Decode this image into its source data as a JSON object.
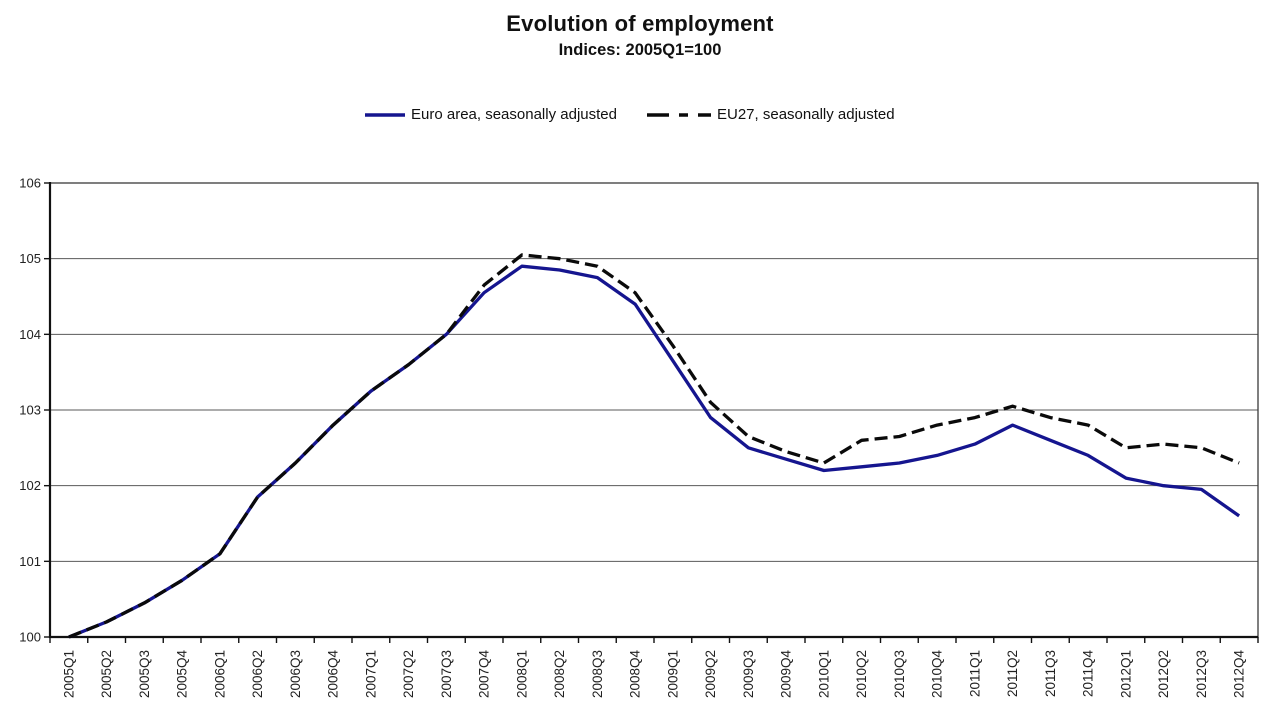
{
  "title": "Evolution of employment",
  "subtitle": "Indices: 2005Q1=100",
  "chart_data": {
    "type": "line",
    "title": "Evolution of employment",
    "subtitle": "Indices: 2005Q1=100",
    "categories": [
      "2005Q1",
      "2005Q2",
      "2005Q3",
      "2005Q4",
      "2006Q1",
      "2006Q2",
      "2006Q3",
      "2006Q4",
      "2007Q1",
      "2007Q2",
      "2007Q3",
      "2007Q4",
      "2008Q1",
      "2008Q2",
      "2008Q3",
      "2008Q4",
      "2009Q1",
      "2009Q2",
      "2009Q3",
      "2009Q4",
      "2010Q1",
      "2010Q2",
      "2010Q3",
      "2010Q4",
      "2011Q1",
      "2011Q2",
      "2011Q3",
      "2011Q4",
      "2012Q1",
      "2012Q2",
      "2012Q3",
      "2012Q4"
    ],
    "series": [
      {
        "name": "Euro area, seasonally adjusted",
        "color": "#15158F",
        "dash": null,
        "values": [
          100.0,
          100.2,
          100.45,
          100.75,
          101.1,
          101.85,
          102.3,
          102.8,
          103.25,
          103.6,
          104.0,
          104.55,
          104.9,
          104.85,
          104.75,
          104.4,
          103.65,
          102.9,
          102.5,
          102.35,
          102.2,
          102.25,
          102.3,
          102.4,
          102.55,
          102.8,
          102.6,
          102.4,
          102.1,
          102.0,
          101.95,
          101.6
        ]
      },
      {
        "name": "EU27, seasonally adjusted",
        "color": "#0a0a0a",
        "dash": [
          13,
          6
        ],
        "values": [
          100.0,
          100.2,
          100.45,
          100.75,
          101.1,
          101.85,
          102.3,
          102.8,
          103.25,
          103.6,
          104.0,
          104.65,
          105.05,
          105.0,
          104.9,
          104.55,
          103.85,
          103.1,
          102.65,
          102.45,
          102.3,
          102.6,
          102.65,
          102.8,
          102.9,
          103.05,
          102.9,
          102.8,
          102.5,
          102.55,
          102.5,
          102.3
        ]
      }
    ],
    "ylim": [
      100,
      106
    ],
    "y_ticks": [
      100,
      101,
      102,
      103,
      104,
      105,
      106
    ],
    "xlabel": "",
    "ylabel": "",
    "grid": true,
    "legend_position": "top-center",
    "colors": {
      "grid_line": "#5a5a5a",
      "frame": "#3a3a3a",
      "axis": "#111111",
      "tick_label": "#222222",
      "background": "#ffffff"
    }
  }
}
